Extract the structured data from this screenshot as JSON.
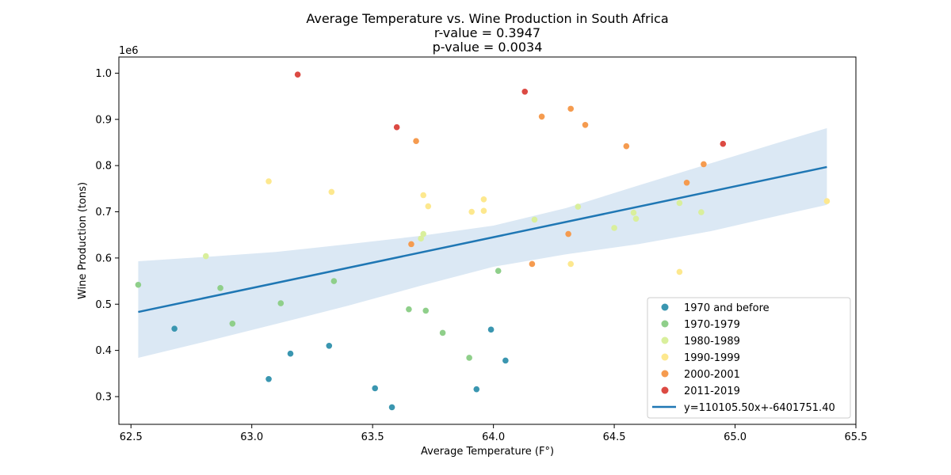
{
  "chart_data": {
    "type": "scatter",
    "title_lines": [
      "Average Temperature vs. Wine Production in South Africa",
      "r-value = 0.3947",
      "p-value = 0.0034"
    ],
    "xlabel": "Average Temperature (F°)",
    "ylabel": "Wine Production (tons)",
    "y_offset_label": "1e6",
    "xlim": [
      62.45,
      65.5
    ],
    "ylim": [
      240000,
      1035000
    ],
    "x_ticks": [
      62.5,
      63.0,
      63.5,
      64.0,
      64.5,
      65.0,
      65.5
    ],
    "x_tick_labels": [
      "62.5",
      "63.0",
      "63.5",
      "64.0",
      "64.5",
      "65.0",
      "65.5"
    ],
    "y_ticks": [
      300000,
      400000,
      500000,
      600000,
      700000,
      800000,
      900000,
      1000000
    ],
    "y_tick_labels": [
      "0.3",
      "0.4",
      "0.5",
      "0.6",
      "0.7",
      "0.8",
      "0.9",
      "1.0"
    ],
    "grid": false,
    "legend_position": "lower-right",
    "series": [
      {
        "name": "1970 and before",
        "color": "#3a96b0",
        "points": [
          [
            62.68,
            447000
          ],
          [
            63.07,
            338000
          ],
          [
            63.16,
            393000
          ],
          [
            63.32,
            410000
          ],
          [
            63.51,
            318000
          ],
          [
            63.58,
            277000
          ],
          [
            63.93,
            316000
          ],
          [
            63.99,
            445000
          ],
          [
            64.05,
            378000
          ]
        ]
      },
      {
        "name": "1970-1979",
        "color": "#8fcf8a",
        "points": [
          [
            62.53,
            542000
          ],
          [
            62.87,
            535000
          ],
          [
            62.92,
            458000
          ],
          [
            63.12,
            502000
          ],
          [
            63.34,
            550000
          ],
          [
            63.65,
            489000
          ],
          [
            63.72,
            486000
          ],
          [
            63.79,
            438000
          ],
          [
            63.9,
            384000
          ],
          [
            64.02,
            572000
          ]
        ]
      },
      {
        "name": "1980-1989",
        "color": "#d9ef9c",
        "points": [
          [
            62.81,
            604000
          ],
          [
            63.7,
            642000
          ],
          [
            63.71,
            652000
          ],
          [
            64.17,
            683000
          ],
          [
            64.35,
            711000
          ],
          [
            64.5,
            665000
          ],
          [
            64.58,
            698000
          ],
          [
            64.59,
            685000
          ],
          [
            64.77,
            719000
          ],
          [
            64.86,
            699000
          ]
        ]
      },
      {
        "name": "1990-1999",
        "color": "#fde88e",
        "points": [
          [
            63.07,
            766000
          ],
          [
            63.33,
            743000
          ],
          [
            63.71,
            736000
          ],
          [
            63.73,
            712000
          ],
          [
            63.91,
            700000
          ],
          [
            63.96,
            727000
          ],
          [
            63.96,
            702000
          ],
          [
            64.32,
            587000
          ],
          [
            64.77,
            570000
          ],
          [
            65.38,
            723000
          ]
        ]
      },
      {
        "name": "2000-2001",
        "color": "#f59b4f",
        "points": [
          [
            63.66,
            630000
          ],
          [
            63.68,
            853000
          ],
          [
            64.16,
            587000
          ],
          [
            64.2,
            906000
          ],
          [
            64.31,
            652000
          ],
          [
            64.32,
            923000
          ],
          [
            64.38,
            888000
          ],
          [
            64.55,
            842000
          ],
          [
            64.8,
            763000
          ],
          [
            64.87,
            803000
          ]
        ]
      },
      {
        "name": "2011-2019",
        "color": "#dc4a43",
        "points": [
          [
            63.19,
            997000
          ],
          [
            63.6,
            883000
          ],
          [
            64.13,
            960000
          ],
          [
            64.95,
            847000
          ]
        ]
      }
    ],
    "regression": {
      "label": "y=110105.50x+-6401751.40",
      "slope": 110105.5,
      "intercept": -6401751.4,
      "x_range": [
        62.53,
        65.38
      ],
      "color": "#1f77b4",
      "band_color": "#dbe8f4",
      "band_upper": [
        [
          62.53,
          593000
        ],
        [
          62.8,
          602000
        ],
        [
          63.1,
          613000
        ],
        [
          63.4,
          630000
        ],
        [
          63.7,
          648000
        ],
        [
          64.0,
          670000
        ],
        [
          64.3,
          708000
        ],
        [
          64.6,
          757000
        ],
        [
          64.9,
          805000
        ],
        [
          65.2,
          853000
        ],
        [
          65.38,
          881000
        ]
      ],
      "band_lower": [
        [
          62.53,
          384000
        ],
        [
          62.8,
          418000
        ],
        [
          63.1,
          457000
        ],
        [
          63.4,
          497000
        ],
        [
          63.7,
          540000
        ],
        [
          64.0,
          581000
        ],
        [
          64.3,
          608000
        ],
        [
          64.6,
          630000
        ],
        [
          64.9,
          658000
        ],
        [
          65.2,
          694000
        ],
        [
          65.38,
          715000
        ]
      ]
    }
  }
}
